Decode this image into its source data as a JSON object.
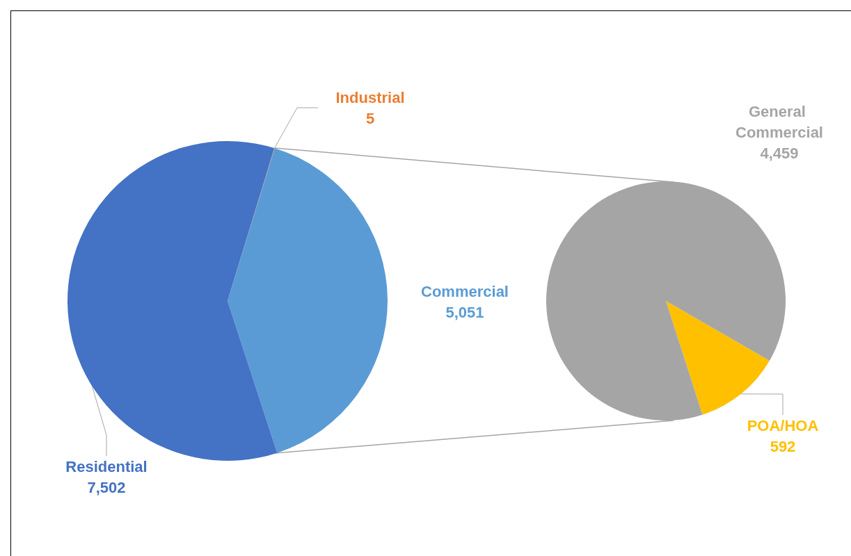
{
  "chart_data": [
    {
      "type": "pie",
      "categories": [
        "Industrial",
        "Commercial",
        "Residential"
      ],
      "values": [
        5,
        5051,
        7502
      ],
      "value_labels": [
        "5",
        "5,051",
        "7,502"
      ],
      "colors": [
        "#ed7d31",
        "#5b9bd5",
        "#4472c4"
      ]
    },
    {
      "type": "pie",
      "categories": [
        "POA/HOA",
        "General Commercial"
      ],
      "values": [
        592,
        4459
      ],
      "value_labels": [
        "592",
        "4,459"
      ],
      "colors": [
        "#ffc000",
        "#a5a5a5"
      ]
    }
  ]
}
